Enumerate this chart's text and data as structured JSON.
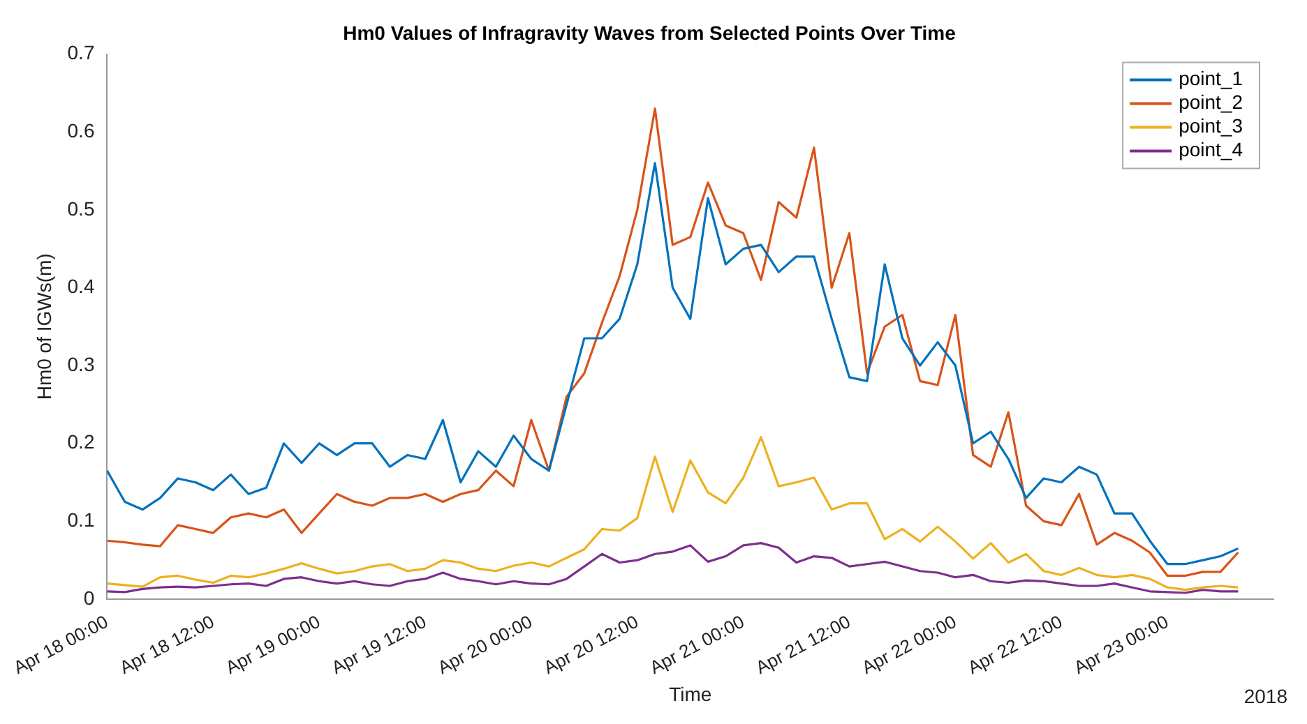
{
  "chart_data": {
    "type": "line",
    "title": "Hm0 Values of Infragravity Waves from Selected Points Over Time",
    "xlabel": "Time",
    "ylabel": "Hm0 of IGWs(m)",
    "annotations": [
      "2018"
    ],
    "x": [
      "2018-04-18T00:00",
      "2018-04-18T02:00",
      "2018-04-18T04:00",
      "2018-04-18T06:00",
      "2018-04-18T08:00",
      "2018-04-18T10:00",
      "2018-04-18T12:00",
      "2018-04-18T14:00",
      "2018-04-18T16:00",
      "2018-04-18T18:00",
      "2018-04-18T20:00",
      "2018-04-18T22:00",
      "2018-04-19T00:00",
      "2018-04-19T02:00",
      "2018-04-19T04:00",
      "2018-04-19T06:00",
      "2018-04-19T08:00",
      "2018-04-19T10:00",
      "2018-04-19T12:00",
      "2018-04-19T14:00",
      "2018-04-19T16:00",
      "2018-04-19T18:00",
      "2018-04-19T20:00",
      "2018-04-19T22:00",
      "2018-04-20T00:00",
      "2018-04-20T02:00",
      "2018-04-20T04:00",
      "2018-04-20T06:00",
      "2018-04-20T08:00",
      "2018-04-20T10:00",
      "2018-04-20T12:00",
      "2018-04-20T14:00",
      "2018-04-20T16:00",
      "2018-04-20T18:00",
      "2018-04-20T20:00",
      "2018-04-20T22:00",
      "2018-04-21T00:00",
      "2018-04-21T02:00",
      "2018-04-21T04:00",
      "2018-04-21T06:00",
      "2018-04-21T08:00",
      "2018-04-21T10:00",
      "2018-04-21T12:00",
      "2018-04-21T14:00",
      "2018-04-21T16:00",
      "2018-04-21T18:00",
      "2018-04-21T20:00",
      "2018-04-21T22:00",
      "2018-04-22T00:00",
      "2018-04-22T02:00",
      "2018-04-22T04:00",
      "2018-04-22T06:00",
      "2018-04-22T08:00",
      "2018-04-22T10:00",
      "2018-04-22T12:00",
      "2018-04-22T14:00",
      "2018-04-22T16:00",
      "2018-04-22T18:00",
      "2018-04-22T20:00",
      "2018-04-22T22:00",
      "2018-04-23T00:00",
      "2018-04-23T02:00",
      "2018-04-23T04:00",
      "2018-04-23T06:00",
      "2018-04-23T08:00"
    ],
    "series": [
      {
        "name": "point_1",
        "color": "#0072bd",
        "values": [
          0.165,
          0.125,
          0.115,
          0.13,
          0.155,
          0.15,
          0.14,
          0.16,
          0.135,
          0.143,
          0.2,
          0.175,
          0.2,
          0.185,
          0.2,
          0.2,
          0.17,
          0.185,
          0.18,
          0.23,
          0.15,
          0.19,
          0.17,
          0.21,
          0.18,
          0.165,
          0.25,
          0.335,
          0.335,
          0.36,
          0.43,
          0.56,
          0.4,
          0.36,
          0.515,
          0.43,
          0.45,
          0.455,
          0.42,
          0.44,
          0.44,
          0.36,
          0.285,
          0.28,
          0.43,
          0.335,
          0.3,
          0.33,
          0.3,
          0.2,
          0.215,
          0.18,
          0.13,
          0.155,
          0.15,
          0.17,
          0.16,
          0.11,
          0.11,
          0.075,
          0.045,
          0.045,
          0.05,
          0.055,
          0.065
        ]
      },
      {
        "name": "point_2",
        "color": "#d95319",
        "values": [
          0.075,
          0.073,
          0.07,
          0.068,
          0.095,
          0.09,
          0.085,
          0.105,
          0.11,
          0.105,
          0.115,
          0.085,
          0.11,
          0.135,
          0.125,
          0.12,
          0.13,
          0.13,
          0.135,
          0.125,
          0.135,
          0.14,
          0.165,
          0.145,
          0.23,
          0.165,
          0.26,
          0.29,
          0.355,
          0.415,
          0.5,
          0.63,
          0.455,
          0.465,
          0.535,
          0.48,
          0.47,
          0.41,
          0.51,
          0.49,
          0.58,
          0.4,
          0.47,
          0.29,
          0.35,
          0.365,
          0.28,
          0.275,
          0.365,
          0.185,
          0.17,
          0.24,
          0.12,
          0.1,
          0.095,
          0.135,
          0.07,
          0.085,
          0.075,
          0.06,
          0.03,
          0.03,
          0.035,
          0.035,
          0.06
        ]
      },
      {
        "name": "point_3",
        "color": "#edb120",
        "values": [
          0.02,
          0.018,
          0.016,
          0.028,
          0.03,
          0.025,
          0.021,
          0.03,
          0.028,
          0.033,
          0.039,
          0.046,
          0.039,
          0.033,
          0.036,
          0.042,
          0.045,
          0.036,
          0.039,
          0.05,
          0.047,
          0.039,
          0.036,
          0.043,
          0.047,
          0.042,
          0.053,
          0.064,
          0.09,
          0.088,
          0.104,
          0.183,
          0.112,
          0.178,
          0.137,
          0.123,
          0.156,
          0.208,
          0.145,
          0.15,
          0.156,
          0.115,
          0.123,
          0.123,
          0.077,
          0.09,
          0.074,
          0.093,
          0.074,
          0.052,
          0.072,
          0.047,
          0.058,
          0.036,
          0.031,
          0.04,
          0.031,
          0.028,
          0.031,
          0.026,
          0.015,
          0.012,
          0.015,
          0.017,
          0.015
        ]
      },
      {
        "name": "point_4",
        "color": "#7e2f8e",
        "values": [
          0.01,
          0.009,
          0.013,
          0.015,
          0.016,
          0.015,
          0.017,
          0.019,
          0.02,
          0.017,
          0.026,
          0.028,
          0.023,
          0.02,
          0.023,
          0.019,
          0.017,
          0.023,
          0.026,
          0.034,
          0.026,
          0.023,
          0.019,
          0.023,
          0.02,
          0.019,
          0.026,
          0.042,
          0.058,
          0.047,
          0.05,
          0.058,
          0.061,
          0.069,
          0.048,
          0.055,
          0.069,
          0.072,
          0.066,
          0.047,
          0.055,
          0.053,
          0.042,
          0.045,
          0.048,
          0.042,
          0.036,
          0.034,
          0.028,
          0.031,
          0.023,
          0.021,
          0.024,
          0.023,
          0.02,
          0.017,
          0.017,
          0.02,
          0.015,
          0.01,
          0.009,
          0.008,
          0.012,
          0.01,
          0.01
        ]
      }
    ],
    "xlim": [
      "2018-04-18T00:00",
      "2018-04-23T12:00"
    ],
    "xticks": [
      {
        "value": "2018-04-18T00:00",
        "label": "Apr 18 00:00"
      },
      {
        "value": "2018-04-18T12:00",
        "label": "Apr 18 12:00"
      },
      {
        "value": "2018-04-19T00:00",
        "label": "Apr 19 00:00"
      },
      {
        "value": "2018-04-19T12:00",
        "label": "Apr 19 12:00"
      },
      {
        "value": "2018-04-20T00:00",
        "label": "Apr 20 00:00"
      },
      {
        "value": "2018-04-20T12:00",
        "label": "Apr 20 12:00"
      },
      {
        "value": "2018-04-21T00:00",
        "label": "Apr 21 00:00"
      },
      {
        "value": "2018-04-21T12:00",
        "label": "Apr 21 12:00"
      },
      {
        "value": "2018-04-22T00:00",
        "label": "Apr 22 00:00"
      },
      {
        "value": "2018-04-22T12:00",
        "label": "Apr 22 12:00"
      },
      {
        "value": "2018-04-23T00:00",
        "label": "Apr 23 00:00"
      }
    ],
    "ylim": [
      0,
      0.7
    ],
    "yticks": [
      0,
      0.1,
      0.2,
      0.3,
      0.4,
      0.5,
      0.6,
      0.7
    ],
    "grid": false,
    "legend": "top right",
    "marker": "none",
    "line_style": "solid"
  }
}
